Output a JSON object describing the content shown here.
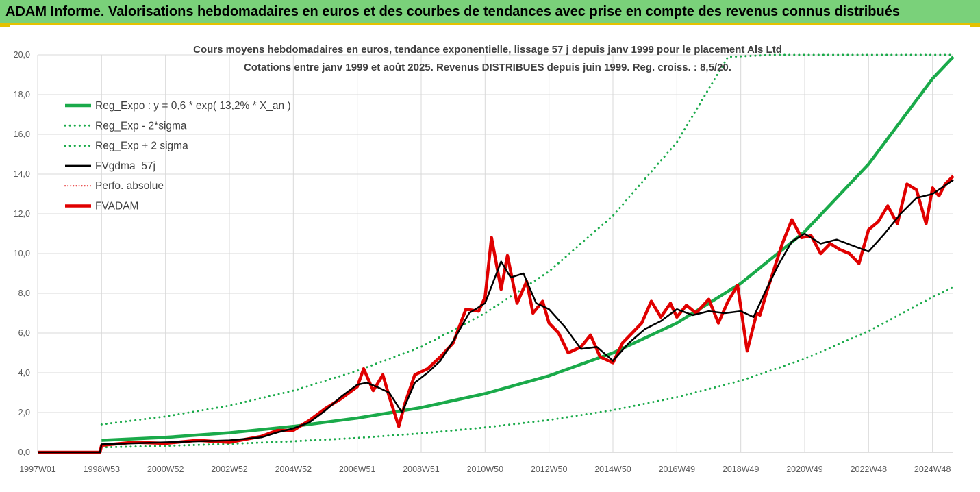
{
  "banner": {
    "title": "ADAM Informe. Valorisations hebdomadaires en euros et des courbes de tendances avec prise en compte des revenus connus distribués"
  },
  "colors": {
    "banner_bg": "#7ad17a",
    "reg_expo": "#1aaa4a",
    "sigma": "#1aaa4a",
    "fvgdma": "#000000",
    "perfo": "#e00000",
    "fvadam": "#e00000",
    "grid": "#d9d9d9"
  },
  "chart_data": {
    "type": "line",
    "title_lines": [
      "Cours moyens hebdomadaires en euros, tendance exponentielle, lissage 57 j depuis janv 1999 pour le placement Als Ltd",
      "Cotations entre janv 1999 et août 2025. Revenus DISTRIBUES depuis juin 1999. Reg. croiss. : 8,5/20."
    ],
    "x_ticks": [
      "1997W01",
      "1998W53",
      "2000W52",
      "2002W52",
      "2004W52",
      "2006W51",
      "2008W51",
      "2010W50",
      "2012W50",
      "2014W50",
      "2016W49",
      "2018W49",
      "2020W49",
      "2022W48",
      "2024W48"
    ],
    "y_ticks": [
      "0,0",
      "2,0",
      "4,0",
      "6,0",
      "8,0",
      "10,0",
      "12,0",
      "14,0",
      "16,0",
      "18,0",
      "20,0"
    ],
    "ylim": [
      0,
      20
    ],
    "x_years": [
      1997.0,
      1999.0,
      2001.0,
      2003.0,
      2005.0,
      2007.0,
      2009.0,
      2011.0,
      2013.0,
      2015.0,
      2017.0,
      2019.0,
      2021.0,
      2023.0,
      2025.0
    ],
    "x_end": 2025.65,
    "data_start": 1999.0,
    "legend": [
      {
        "key": "reg_expo",
        "label": "Reg_Expo : y = 0,6 * exp( 13,2% *  X_an )",
        "style": "solid-thick",
        "color": "#1aaa4a"
      },
      {
        "key": "sigma_minus",
        "label": "Reg_Exp - 2*sigma",
        "style": "dotted",
        "color": "#1aaa4a"
      },
      {
        "key": "sigma_plus",
        "label": "Reg_Exp + 2 sigma",
        "style": "dotted",
        "color": "#1aaa4a"
      },
      {
        "key": "fvgdma",
        "label": "FVgdma_57j",
        "style": "solid",
        "color": "#000000"
      },
      {
        "key": "perfo",
        "label": "Perfo. absolue",
        "style": "dotted-thin",
        "color": "#e00000"
      },
      {
        "key": "fvadam",
        "label": "FVADAM",
        "style": "solid-thick",
        "color": "#e00000"
      }
    ],
    "series": [
      {
        "name": "Reg_Expo : y = 0,6 * exp( 13,2% *  X_an )",
        "x": [
          1999.0,
          2001.0,
          2003.0,
          2005.0,
          2007.0,
          2009.0,
          2011.0,
          2013.0,
          2015.0,
          2017.0,
          2019.0,
          2021.0,
          2023.0,
          2025.0,
          2025.65
        ],
        "values": [
          0.6,
          0.75,
          0.98,
          1.3,
          1.72,
          2.25,
          2.95,
          3.85,
          5.0,
          6.5,
          8.5,
          11.1,
          14.5,
          18.8,
          19.9
        ]
      },
      {
        "name": "Reg_Exp - 2*sigma",
        "x": [
          1999.0,
          2001.0,
          2003.0,
          2005.0,
          2007.0,
          2009.0,
          2011.0,
          2013.0,
          2015.0,
          2017.0,
          2019.0,
          2021.0,
          2023.0,
          2025.0,
          2025.65
        ],
        "values": [
          0.25,
          0.32,
          0.42,
          0.55,
          0.72,
          0.95,
          1.25,
          1.62,
          2.12,
          2.77,
          3.6,
          4.7,
          6.1,
          7.8,
          8.3
        ]
      },
      {
        "name": "Reg_Exp + 2 sigma",
        "x": [
          1999.0,
          2001.0,
          2003.0,
          2005.0,
          2007.0,
          2009.0,
          2011.0,
          2013.0,
          2015.0,
          2017.0,
          2018.6,
          2020.0,
          2025.65
        ],
        "values": [
          1.4,
          1.8,
          2.35,
          3.1,
          4.1,
          5.3,
          7.0,
          9.1,
          11.9,
          15.6,
          19.9,
          20.0,
          20.0
        ]
      },
      {
        "name": "FVgdma_57j",
        "x": [
          1997.0,
          1998.95,
          1999.0,
          2000.0,
          2001.0,
          2002.0,
          2003.0,
          2004.0,
          2004.5,
          2005.0,
          2005.5,
          2006.0,
          2006.5,
          2007.0,
          2007.3,
          2007.6,
          2008.0,
          2008.4,
          2008.8,
          2009.2,
          2009.6,
          2010.0,
          2010.5,
          2011.0,
          2011.5,
          2011.8,
          2012.2,
          2012.6,
          2013.0,
          2013.5,
          2014.0,
          2014.5,
          2015.0,
          2015.5,
          2016.0,
          2016.5,
          2017.0,
          2017.5,
          2018.0,
          2018.5,
          2019.0,
          2019.4,
          2019.8,
          2020.2,
          2020.6,
          2021.0,
          2021.5,
          2022.0,
          2022.5,
          2023.0,
          2023.5,
          2024.0,
          2024.5,
          2025.0,
          2025.65
        ],
        "values": [
          0.0,
          0.0,
          0.4,
          0.45,
          0.5,
          0.55,
          0.6,
          0.75,
          1.0,
          1.2,
          1.5,
          2.1,
          2.8,
          3.4,
          3.5,
          3.3,
          3.0,
          2.0,
          3.5,
          4.0,
          4.6,
          5.6,
          7.0,
          7.5,
          9.6,
          8.8,
          9.0,
          7.5,
          7.2,
          6.3,
          5.2,
          5.3,
          4.6,
          5.5,
          6.2,
          6.6,
          7.2,
          6.9,
          7.1,
          7.0,
          7.1,
          6.8,
          8.2,
          9.5,
          10.6,
          11.0,
          10.5,
          10.7,
          10.4,
          10.1,
          11.0,
          12.0,
          12.8,
          13.0,
          13.7
        ]
      },
      {
        "name": "FVADAM",
        "x": [
          1997.0,
          1998.95,
          1999.0,
          2000.0,
          2001.0,
          2002.0,
          2003.0,
          2004.0,
          2004.5,
          2005.0,
          2005.5,
          2006.0,
          2006.5,
          2007.0,
          2007.2,
          2007.5,
          2007.8,
          2008.0,
          2008.3,
          2008.5,
          2008.8,
          2009.2,
          2009.6,
          2010.0,
          2010.4,
          2010.8,
          2011.0,
          2011.2,
          2011.5,
          2011.7,
          2012.0,
          2012.3,
          2012.5,
          2012.8,
          2013.0,
          2013.3,
          2013.6,
          2014.0,
          2014.3,
          2014.6,
          2015.0,
          2015.3,
          2015.6,
          2015.9,
          2016.2,
          2016.5,
          2016.8,
          2017.0,
          2017.3,
          2017.6,
          2018.0,
          2018.3,
          2018.6,
          2018.9,
          2019.2,
          2019.5,
          2019.6,
          2019.8,
          2020.0,
          2020.3,
          2020.6,
          2020.9,
          2021.2,
          2021.5,
          2021.8,
          2022.1,
          2022.4,
          2022.7,
          2023.0,
          2023.3,
          2023.6,
          2023.9,
          2024.2,
          2024.5,
          2024.8,
          2025.0,
          2025.2,
          2025.4,
          2025.65
        ],
        "values": [
          0.0,
          0.0,
          0.35,
          0.5,
          0.45,
          0.6,
          0.5,
          0.8,
          1.1,
          1.1,
          1.6,
          2.2,
          2.7,
          3.3,
          4.2,
          3.1,
          3.9,
          2.8,
          1.3,
          2.5,
          3.9,
          4.2,
          4.8,
          5.5,
          7.2,
          7.1,
          7.8,
          10.8,
          8.2,
          9.9,
          7.5,
          8.6,
          7.0,
          7.6,
          6.5,
          6.0,
          5.0,
          5.3,
          5.9,
          4.8,
          4.5,
          5.5,
          6.0,
          6.5,
          7.6,
          6.8,
          7.5,
          6.8,
          7.4,
          7.0,
          7.7,
          6.5,
          7.6,
          8.4,
          5.1,
          7.0,
          6.9,
          8.0,
          9.0,
          10.5,
          11.7,
          10.8,
          10.9,
          10.0,
          10.5,
          10.2,
          10.0,
          9.5,
          11.2,
          11.6,
          12.4,
          11.5,
          13.5,
          13.2,
          11.5,
          13.3,
          12.9,
          13.5,
          13.9
        ]
      }
    ]
  }
}
